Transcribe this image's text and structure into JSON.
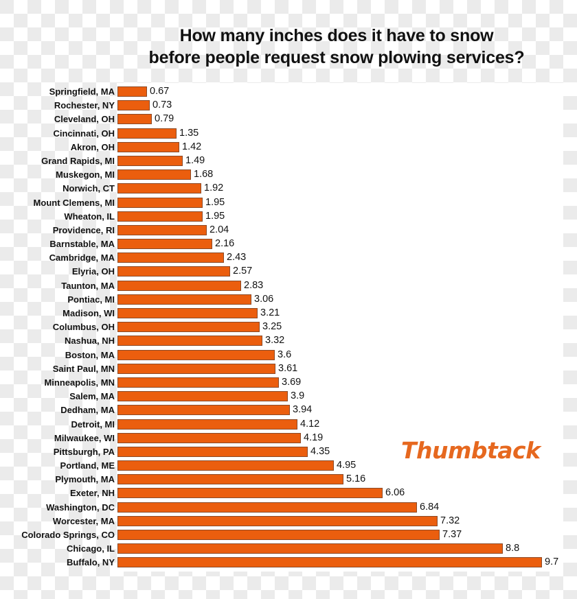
{
  "chart_data": {
    "type": "bar",
    "orientation": "horizontal",
    "title": "How many inches does it have to snow before people request snow plowing services?",
    "title_lines": [
      "How many inches does it have to snow",
      "before people request snow plowing services?"
    ],
    "xlabel": "",
    "ylabel": "",
    "xlim": [
      0,
      10
    ],
    "grid": false,
    "legend": null,
    "data_labels": true,
    "bar_color": "#eb5e0e",
    "bar_border_color": "#8b4a27",
    "categories": [
      "Springfield, MA",
      "Rochester, NY",
      "Cleveland, OH",
      "Cincinnati, OH",
      "Akron, OH",
      "Grand Rapids, MI",
      "Muskegon, MI",
      "Norwich, CT",
      "Mount Clemens, MI",
      "Wheaton, IL",
      "Providence, RI",
      "Barnstable, MA",
      "Cambridge, MA",
      "Elyria, OH",
      "Taunton, MA",
      "Pontiac, MI",
      "Madison, WI",
      "Columbus, OH",
      "Nashua, NH",
      "Boston, MA",
      "Saint Paul, MN",
      "Minneapolis, MN",
      "Salem, MA",
      "Dedham, MA",
      "Detroit, MI",
      "Milwaukee, WI",
      "Pittsburgh, PA",
      "Portland, ME",
      "Plymouth, MA",
      "Exeter, NH",
      "Washington, DC",
      "Worcester, MA",
      "Colorado Springs, CO",
      "Chicago, IL",
      "Buffalo, NY"
    ],
    "values": [
      0.67,
      0.73,
      0.79,
      1.35,
      1.42,
      1.49,
      1.68,
      1.92,
      1.95,
      1.95,
      2.04,
      2.16,
      2.43,
      2.57,
      2.83,
      3.06,
      3.21,
      3.25,
      3.32,
      3.6,
      3.61,
      3.69,
      3.9,
      3.94,
      4.12,
      4.19,
      4.35,
      4.95,
      5.16,
      6.06,
      6.84,
      7.32,
      7.37,
      8.8,
      9.7
    ],
    "value_labels": [
      "0.67",
      "0.73",
      "0.79",
      "1.35",
      "1.42",
      "1.49",
      "1.68",
      "1.92",
      "1.95",
      "1.95",
      "2.04",
      "2.16",
      "2.43",
      "2.57",
      "2.83",
      "3.06",
      "3.21",
      "3.25",
      "3.32",
      "3.6",
      "3.61",
      "3.69",
      "3.9",
      "3.94",
      "4.12",
      "4.19",
      "4.35",
      "4.95",
      "5.16",
      "6.06",
      "6.84",
      "7.32",
      "7.37",
      "8.8",
      "9.7"
    ]
  },
  "branding": {
    "logo_text": "Thumbtack",
    "logo_color": "#e6681f"
  }
}
